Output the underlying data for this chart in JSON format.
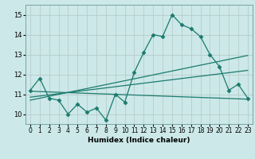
{
  "x": [
    0,
    1,
    2,
    3,
    4,
    5,
    6,
    7,
    8,
    9,
    10,
    11,
    12,
    13,
    14,
    15,
    16,
    17,
    18,
    19,
    20,
    21,
    22,
    23
  ],
  "line2": [
    11.2,
    11.8,
    10.8,
    10.7,
    10.0,
    10.5,
    10.1,
    10.3,
    9.7,
    11.0,
    10.6,
    12.1,
    13.1,
    14.0,
    13.9,
    15.0,
    14.5,
    14.3,
    13.9,
    13.0,
    12.4,
    11.2,
    11.5,
    10.8
  ],
  "trend1_x": [
    0,
    23
  ],
  "trend1_y": [
    11.15,
    10.75
  ],
  "trend2_x": [
    0,
    23
  ],
  "trend2_y": [
    10.85,
    12.2
  ],
  "trend3_x": [
    0,
    23
  ],
  "trend3_y": [
    10.7,
    12.95
  ],
  "ylim": [
    9.5,
    15.5
  ],
  "xlim": [
    -0.5,
    23.5
  ],
  "yticks": [
    10,
    11,
    12,
    13,
    14,
    15
  ],
  "xticks": [
    0,
    1,
    2,
    3,
    4,
    5,
    6,
    7,
    8,
    9,
    10,
    11,
    12,
    13,
    14,
    15,
    16,
    17,
    18,
    19,
    20,
    21,
    22,
    23
  ],
  "xlabel": "Humidex (Indice chaleur)",
  "line_color": "#1a7a6e",
  "bg_color": "#cce8e8",
  "grid_color": "#b8cccc",
  "marker": "D",
  "marker_size": 2.5,
  "linewidth": 0.9
}
